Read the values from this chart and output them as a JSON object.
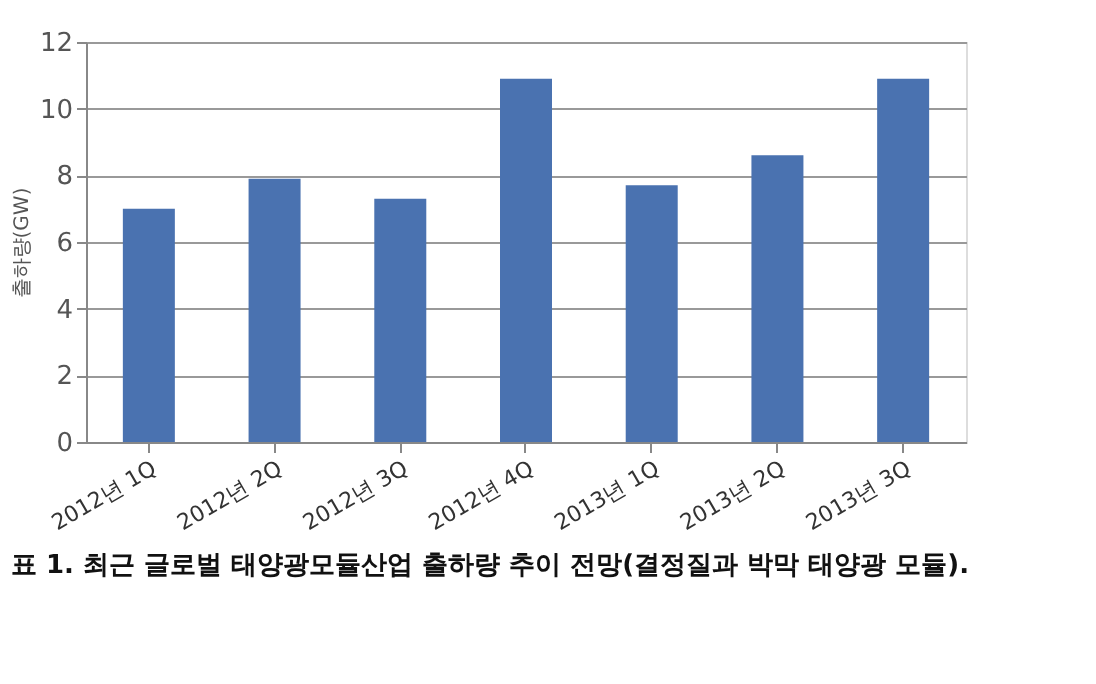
{
  "chart_data": {
    "type": "bar",
    "title": "표 1. 최근 글로벌 태양광모듈산업 출하량 추이 전망(결정질과 박막 태양광 모듈).",
    "ylabel": "출하량(GW)",
    "categories": [
      "2012년 1Q",
      "2012년 2Q",
      "2012년 3Q",
      "2012년 4Q",
      "2013년 1Q",
      "2013년 2Q",
      "2013년 3Q"
    ],
    "values": [
      7.0,
      7.9,
      7.3,
      10.9,
      7.7,
      8.6,
      10.9
    ],
    "color": "#4a72b0",
    "ylim": [
      0,
      12
    ],
    "yticks": [
      0,
      2,
      4,
      6,
      8,
      10,
      12
    ],
    "grid": "y",
    "legend": false
  }
}
